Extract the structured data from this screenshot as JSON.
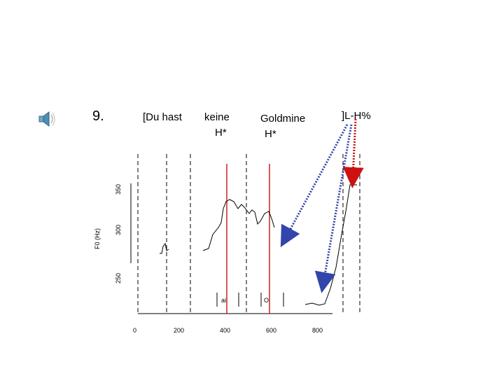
{
  "slide": {
    "number": "9.",
    "speaker_icon": "speaker-icon"
  },
  "words": {
    "du_hast": "[Du  hast",
    "keine": "keine",
    "keine_accent": "H*",
    "goldmine": "Goldmine",
    "goldmine_accent": "H*",
    "boundary": "]L-H%"
  },
  "segments": {
    "ai": "ai",
    "o": "O"
  },
  "axes": {
    "ylabel": "F0 (Hz)",
    "y_ticks": [
      "250",
      "300",
      "350"
    ],
    "x_ticks": [
      "0",
      "200",
      "400",
      "600",
      "800"
    ]
  },
  "colors": {
    "contour": "#000000",
    "accent_line": "#cc2222",
    "arrow_blue": "#3344aa",
    "arrow_red": "#cc1111",
    "boundary_dash": "#000000"
  }
}
